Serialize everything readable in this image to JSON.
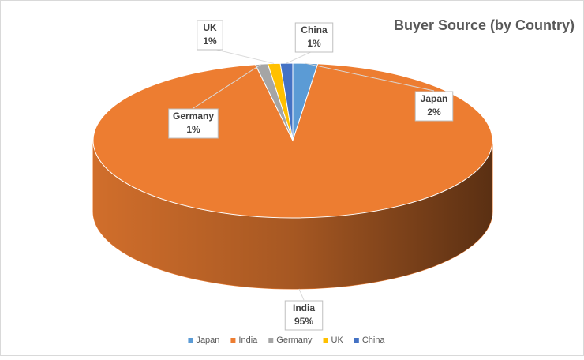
{
  "chart_data": {
    "type": "pie",
    "title": "Buyer Source (by Country)",
    "categories": [
      "Japan",
      "India",
      "Germany",
      "UK",
      "China"
    ],
    "values": [
      2,
      95,
      1,
      1,
      1
    ],
    "value_labels": [
      "2%",
      "95%",
      "1%",
      "1%",
      "1%"
    ],
    "colors": [
      "#5b9bd5",
      "#ed7d31",
      "#a5a5a5",
      "#ffc000",
      "#4472c4"
    ],
    "legend": "bottom"
  }
}
